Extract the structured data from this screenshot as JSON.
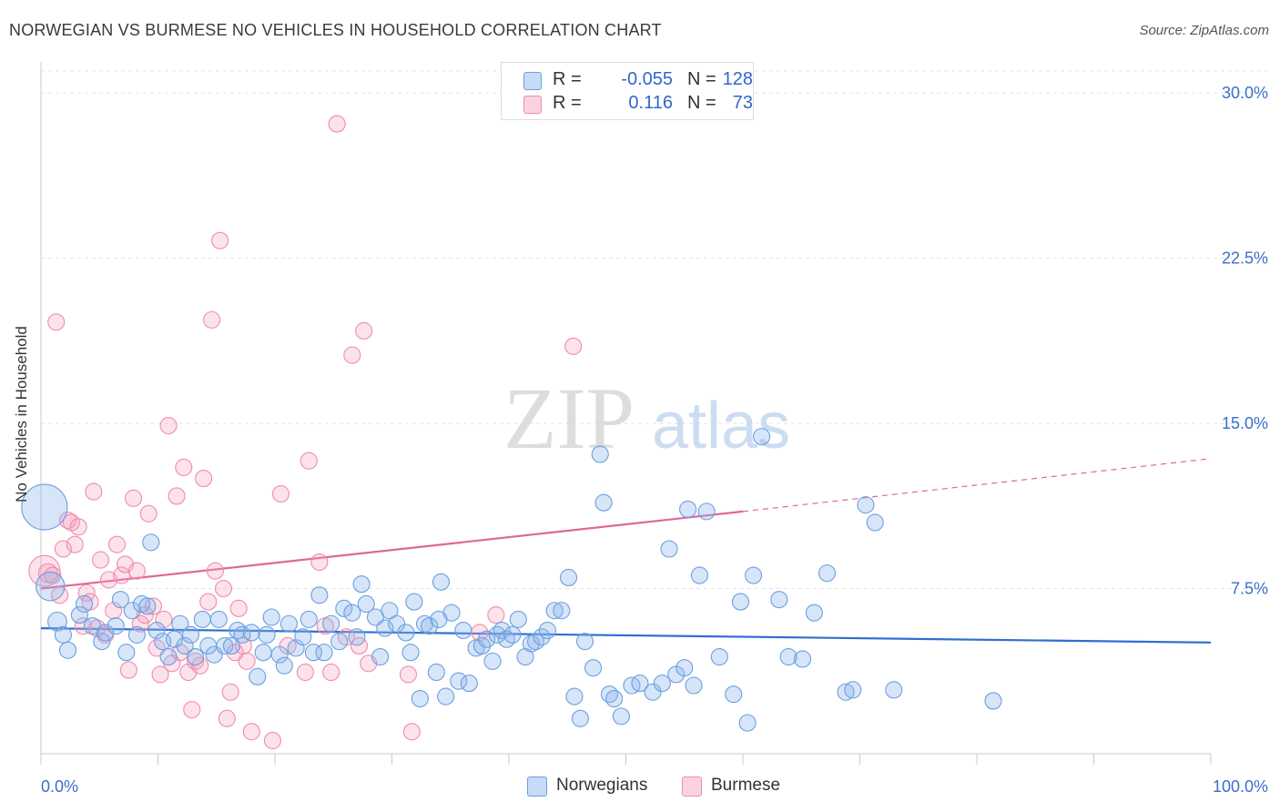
{
  "title": "NORWEGIAN VS BURMESE NO VEHICLES IN HOUSEHOLD CORRELATION CHART",
  "source": "Source: ZipAtlas.com",
  "watermark": {
    "part1": "ZIP",
    "part2": "atlas"
  },
  "legend": {
    "r_label": "R =",
    "n_label": "N =",
    "rows": [
      {
        "r": "-0.055",
        "n": "128",
        "color": "#6a9fe0"
      },
      {
        "r": "0.116",
        "n": "73",
        "color": "#f08cab"
      }
    ]
  },
  "bottom_legend": [
    {
      "label": "Norwegians",
      "color": "#6a9fe0"
    },
    {
      "label": "Burmese",
      "color": "#f08cab"
    }
  ],
  "chart_data": {
    "type": "scatter",
    "title": "NORWEGIAN VS BURMESE NO VEHICLES IN HOUSEHOLD CORRELATION CHART",
    "ylabel": "No Vehicles in Household",
    "xlabel": "",
    "xlim": [
      0,
      100
    ],
    "ylim": [
      0,
      31
    ],
    "x_tick_labels": [
      "0.0%",
      "100.0%"
    ],
    "y_ticks": [
      7.5,
      15.0,
      22.5,
      30.0
    ],
    "y_tick_labels": [
      "7.5%",
      "15.0%",
      "22.5%",
      "30.0%"
    ],
    "grid": true,
    "legend_position": "top-center",
    "series": [
      {
        "name": "Norwegians",
        "color": "#6a9fe0",
        "trend": {
          "x": [
            0,
            100
          ],
          "y": [
            5.7,
            5.05
          ],
          "style": "solid"
        },
        "points": [
          [
            0.3,
            11.2,
            36
          ],
          [
            0.8,
            7.6,
            22
          ],
          [
            1.4,
            6.0,
            14
          ],
          [
            1.9,
            5.4,
            12
          ],
          [
            2.3,
            4.7,
            12
          ],
          [
            3.3,
            6.3,
            12
          ],
          [
            3.7,
            6.8,
            12
          ],
          [
            4.4,
            5.8,
            12
          ],
          [
            5.2,
            5.1,
            12
          ],
          [
            5.5,
            5.5,
            12
          ],
          [
            6.4,
            5.8,
            12
          ],
          [
            6.8,
            7.0,
            12
          ],
          [
            7.3,
            4.6,
            12
          ],
          [
            7.8,
            6.5,
            12
          ],
          [
            8.2,
            5.4,
            12
          ],
          [
            8.6,
            6.8,
            12
          ],
          [
            9.1,
            6.7,
            12
          ],
          [
            9.4,
            9.6,
            12
          ],
          [
            9.9,
            5.6,
            12
          ],
          [
            10.4,
            5.1,
            12
          ],
          [
            10.9,
            4.4,
            12
          ],
          [
            11.4,
            5.2,
            12
          ],
          [
            11.9,
            5.9,
            12
          ],
          [
            12.3,
            4.9,
            12
          ],
          [
            12.8,
            5.4,
            12
          ],
          [
            13.2,
            4.4,
            12
          ],
          [
            13.8,
            6.1,
            12
          ],
          [
            14.3,
            4.9,
            12
          ],
          [
            14.8,
            4.5,
            12
          ],
          [
            15.2,
            6.1,
            12
          ],
          [
            15.7,
            4.9,
            12
          ],
          [
            16.3,
            4.9,
            12
          ],
          [
            16.8,
            5.6,
            12
          ],
          [
            17.2,
            5.4,
            12
          ],
          [
            18.0,
            5.5,
            12
          ],
          [
            18.5,
            3.5,
            12
          ],
          [
            19.0,
            4.6,
            12
          ],
          [
            19.3,
            5.4,
            12
          ],
          [
            19.7,
            6.2,
            12
          ],
          [
            20.4,
            4.5,
            12
          ],
          [
            20.8,
            4.0,
            12
          ],
          [
            21.2,
            5.9,
            12
          ],
          [
            21.8,
            4.8,
            12
          ],
          [
            22.4,
            5.3,
            12
          ],
          [
            22.9,
            6.1,
            12
          ],
          [
            23.3,
            4.6,
            12
          ],
          [
            23.8,
            7.2,
            12
          ],
          [
            24.2,
            4.6,
            12
          ],
          [
            24.8,
            5.9,
            12
          ],
          [
            25.5,
            5.1,
            12
          ],
          [
            25.9,
            6.6,
            12
          ],
          [
            26.6,
            6.4,
            12
          ],
          [
            27.0,
            5.3,
            12
          ],
          [
            27.4,
            7.7,
            12
          ],
          [
            27.8,
            6.8,
            12
          ],
          [
            28.6,
            6.2,
            12
          ],
          [
            29.0,
            4.4,
            12
          ],
          [
            29.4,
            5.7,
            12
          ],
          [
            29.8,
            6.5,
            12
          ],
          [
            30.4,
            5.9,
            12
          ],
          [
            31.2,
            5.5,
            12
          ],
          [
            31.6,
            4.6,
            12
          ],
          [
            31.9,
            6.9,
            12
          ],
          [
            32.4,
            2.5,
            12
          ],
          [
            32.8,
            5.9,
            12
          ],
          [
            33.2,
            5.8,
            12
          ],
          [
            33.8,
            3.7,
            12
          ],
          [
            34.2,
            7.8,
            12
          ],
          [
            34.6,
            2.6,
            12
          ],
          [
            35.1,
            6.4,
            12
          ],
          [
            35.7,
            3.3,
            12
          ],
          [
            36.1,
            5.6,
            12
          ],
          [
            36.6,
            3.2,
            12
          ],
          [
            37.2,
            4.8,
            12
          ],
          [
            37.7,
            4.9,
            12
          ],
          [
            38.1,
            5.2,
            12
          ],
          [
            38.6,
            4.2,
            12
          ],
          [
            39.0,
            5.4,
            12
          ],
          [
            39.4,
            5.6,
            12
          ],
          [
            39.8,
            5.2,
            12
          ],
          [
            40.3,
            5.4,
            12
          ],
          [
            40.8,
            6.1,
            12
          ],
          [
            41.4,
            4.4,
            12
          ],
          [
            41.9,
            5.0,
            12
          ],
          [
            42.3,
            5.1,
            12
          ],
          [
            42.8,
            5.3,
            12
          ],
          [
            43.3,
            5.6,
            12
          ],
          [
            43.9,
            6.5,
            12
          ],
          [
            44.5,
            6.5,
            12
          ],
          [
            45.1,
            8.0,
            12
          ],
          [
            45.6,
            2.6,
            12
          ],
          [
            46.1,
            1.6,
            12
          ],
          [
            46.5,
            5.1,
            12
          ],
          [
            47.2,
            3.9,
            12
          ],
          [
            47.8,
            13.6,
            12
          ],
          [
            48.1,
            11.4,
            12
          ],
          [
            48.6,
            2.7,
            12
          ],
          [
            49.0,
            2.5,
            12
          ],
          [
            49.6,
            1.7,
            12
          ],
          [
            50.5,
            3.1,
            12
          ],
          [
            51.2,
            3.2,
            12
          ],
          [
            52.3,
            2.8,
            12
          ],
          [
            53.1,
            3.2,
            12
          ],
          [
            53.7,
            9.3,
            12
          ],
          [
            54.3,
            3.6,
            12
          ],
          [
            55.0,
            3.9,
            12
          ],
          [
            55.8,
            3.1,
            12
          ],
          [
            56.3,
            8.1,
            12
          ],
          [
            56.9,
            11.0,
            12
          ],
          [
            58.0,
            4.4,
            12
          ],
          [
            59.2,
            2.7,
            12
          ],
          [
            59.8,
            6.9,
            12
          ],
          [
            60.4,
            1.4,
            12
          ],
          [
            60.9,
            8.1,
            12
          ],
          [
            61.6,
            14.4,
            12
          ],
          [
            63.1,
            7.0,
            12
          ],
          [
            63.9,
            4.4,
            12
          ],
          [
            65.1,
            4.3,
            12
          ],
          [
            66.1,
            6.4,
            12
          ],
          [
            67.2,
            8.2,
            12
          ],
          [
            68.8,
            2.8,
            12
          ],
          [
            69.4,
            2.9,
            12
          ],
          [
            70.5,
            11.3,
            12
          ],
          [
            71.3,
            10.5,
            12
          ],
          [
            72.9,
            2.9,
            12
          ],
          [
            81.4,
            2.4,
            12
          ],
          [
            55.3,
            11.1,
            12
          ],
          [
            34.0,
            6.1,
            12
          ]
        ]
      },
      {
        "name": "Burmese",
        "color": "#f08cab",
        "trend": {
          "x": [
            0,
            60
          ],
          "y": [
            7.5,
            11.0
          ],
          "dash_x": [
            60,
            100
          ],
          "dash_y": [
            11.0,
            13.4
          ],
          "style": "solid-then-dashed"
        },
        "points": [
          [
            0.3,
            8.3,
            24
          ],
          [
            0.6,
            8.2,
            14
          ],
          [
            1.0,
            8.1,
            12
          ],
          [
            1.3,
            19.6,
            12
          ],
          [
            1.6,
            7.2,
            12
          ],
          [
            1.9,
            9.3,
            12
          ],
          [
            2.3,
            10.6,
            12
          ],
          [
            2.6,
            10.5,
            12
          ],
          [
            2.9,
            9.5,
            12
          ],
          [
            3.2,
            10.3,
            12
          ],
          [
            3.6,
            5.8,
            12
          ],
          [
            3.9,
            7.3,
            12
          ],
          [
            4.2,
            6.9,
            12
          ],
          [
            4.5,
            11.9,
            12
          ],
          [
            4.8,
            5.7,
            12
          ],
          [
            5.1,
            8.8,
            12
          ],
          [
            5.5,
            5.4,
            12
          ],
          [
            5.8,
            7.9,
            12
          ],
          [
            6.2,
            6.5,
            12
          ],
          [
            6.5,
            9.5,
            12
          ],
          [
            6.9,
            8.1,
            12
          ],
          [
            7.2,
            8.6,
            12
          ],
          [
            7.5,
            3.8,
            12
          ],
          [
            7.9,
            11.6,
            12
          ],
          [
            8.2,
            8.3,
            12
          ],
          [
            8.5,
            5.9,
            12
          ],
          [
            8.9,
            6.3,
            12
          ],
          [
            9.2,
            10.9,
            12
          ],
          [
            9.6,
            6.7,
            12
          ],
          [
            9.9,
            4.8,
            12
          ],
          [
            10.2,
            3.6,
            12
          ],
          [
            10.5,
            6.1,
            12
          ],
          [
            10.9,
            14.9,
            12
          ],
          [
            11.2,
            4.1,
            12
          ],
          [
            11.6,
            11.7,
            12
          ],
          [
            11.9,
            4.6,
            12
          ],
          [
            12.2,
            13.0,
            12
          ],
          [
            12.6,
            3.7,
            12
          ],
          [
            12.9,
            2.0,
            12
          ],
          [
            13.2,
            4.2,
            12
          ],
          [
            13.6,
            4.0,
            12
          ],
          [
            13.9,
            12.5,
            12
          ],
          [
            14.3,
            6.9,
            12
          ],
          [
            14.6,
            19.7,
            12
          ],
          [
            14.9,
            8.3,
            12
          ],
          [
            15.3,
            23.3,
            12
          ],
          [
            15.6,
            7.5,
            12
          ],
          [
            15.9,
            1.6,
            12
          ],
          [
            16.2,
            2.8,
            12
          ],
          [
            16.6,
            4.6,
            12
          ],
          [
            16.9,
            6.6,
            12
          ],
          [
            17.3,
            4.9,
            12
          ],
          [
            17.6,
            4.2,
            12
          ],
          [
            18.0,
            1.0,
            12
          ],
          [
            19.8,
            0.6,
            12
          ],
          [
            20.5,
            11.8,
            12
          ],
          [
            21.1,
            4.9,
            12
          ],
          [
            22.6,
            3.7,
            12
          ],
          [
            22.9,
            13.3,
            12
          ],
          [
            23.8,
            8.7,
            12
          ],
          [
            24.3,
            5.8,
            12
          ],
          [
            24.8,
            3.7,
            12
          ],
          [
            25.3,
            28.6,
            12
          ],
          [
            26.1,
            5.3,
            12
          ],
          [
            26.6,
            18.1,
            12
          ],
          [
            27.2,
            4.9,
            12
          ],
          [
            27.6,
            19.2,
            12
          ],
          [
            28.0,
            4.1,
            12
          ],
          [
            31.4,
            3.6,
            12
          ],
          [
            31.7,
            1.0,
            12
          ],
          [
            37.5,
            5.5,
            12
          ],
          [
            38.9,
            6.3,
            12
          ],
          [
            45.5,
            18.5,
            12
          ]
        ]
      }
    ]
  }
}
